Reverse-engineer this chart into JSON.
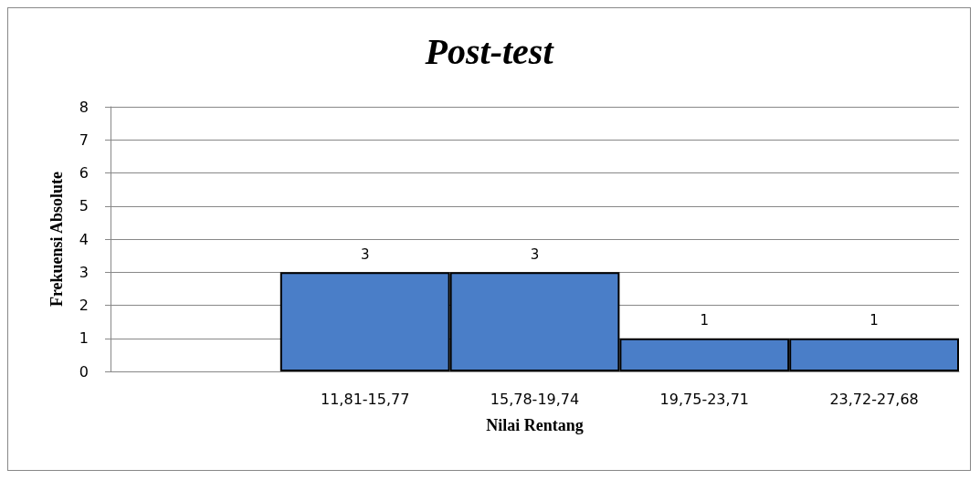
{
  "chart_data": {
    "type": "bar",
    "title": "Post-test",
    "xlabel": "Nilai Rentang",
    "ylabel": "Frekuensi Absolute",
    "categories": [
      null,
      "11,81-15,77",
      "15,78-19,74",
      "19,75-23,71",
      "23,72-27,68"
    ],
    "values": [
      null,
      3,
      3,
      1,
      1
    ],
    "color": "#4a7ec8",
    "ylim": [
      0,
      8
    ],
    "yticks": [
      0,
      1,
      2,
      3,
      4,
      5,
      6,
      7,
      8
    ],
    "grid": "y",
    "data_labels": true
  }
}
